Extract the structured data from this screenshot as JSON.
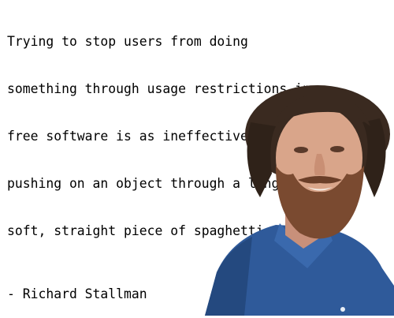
{
  "quote": {
    "lines": [
      "Trying to stop users from doing",
      "something through usage restrictions in",
      "free software is as ineffective as",
      "pushing on an object through a long,",
      "soft, straight piece of spaghetti."
    ],
    "attribution": "- Richard Stallman"
  },
  "portrait": {
    "alt": "Richard Stallman",
    "colors": {
      "shirt": "#2f5a9a",
      "skin": "#d9a58a",
      "hair": "#3a2a20",
      "beard": "#7a4a30"
    }
  }
}
